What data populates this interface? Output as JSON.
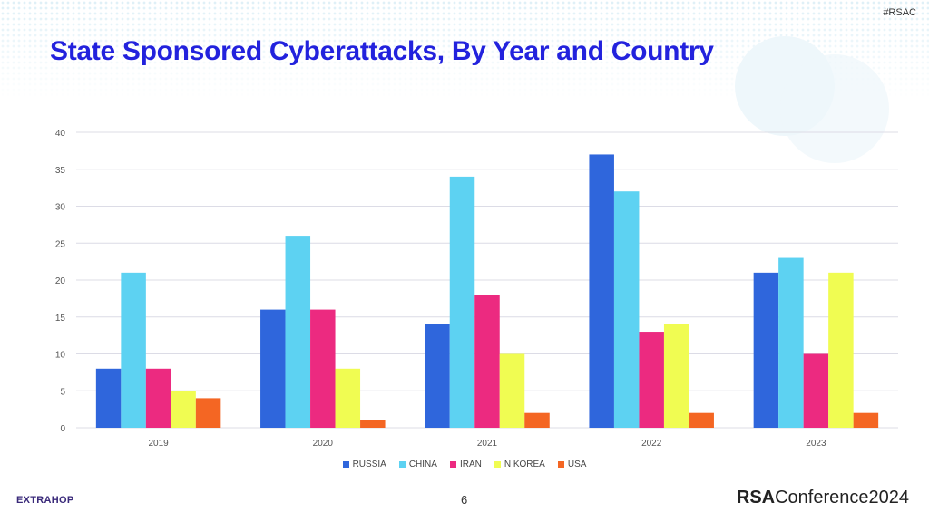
{
  "header": {
    "hashtag": "#RSAC",
    "title": "State Sponsored Cyberattacks, By Year and Country"
  },
  "footer": {
    "left_logo": "EXTRAHOP",
    "page_number": "6",
    "right_logo_bold": "RSA",
    "right_logo_rest": "Conference2024"
  },
  "chart_data": {
    "type": "bar",
    "title": "",
    "xlabel": "",
    "ylabel": "",
    "ylim": [
      0,
      40
    ],
    "yticks": [
      "0",
      "5",
      "10",
      "15",
      "20",
      "25",
      "30",
      "35",
      "40"
    ],
    "grid": true,
    "legend_position": "bottom",
    "categories": [
      "2019",
      "2020",
      "2021",
      "2022",
      "2023"
    ],
    "series": [
      {
        "name": "RUSSIA",
        "color": "#2f66dc",
        "values": [
          8,
          16,
          14,
          37,
          21
        ]
      },
      {
        "name": "CHINA",
        "color": "#5dd2f2",
        "values": [
          21,
          26,
          34,
          32,
          23
        ]
      },
      {
        "name": "IRAN",
        "color": "#ec2a80",
        "values": [
          8,
          16,
          18,
          13,
          10
        ]
      },
      {
        "name": "N KOREA",
        "color": "#f0fc52",
        "values": [
          5,
          8,
          10,
          14,
          21
        ]
      },
      {
        "name": "USA",
        "color": "#f46623",
        "values": [
          4,
          1,
          2,
          2,
          2
        ]
      }
    ]
  }
}
